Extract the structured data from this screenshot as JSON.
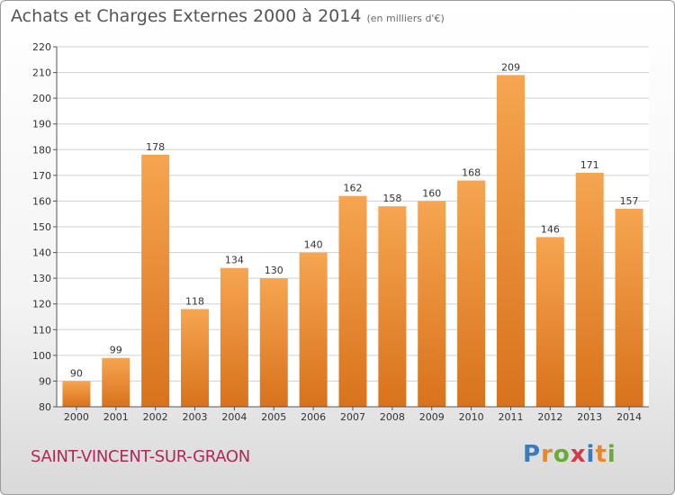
{
  "title": "Achats et Charges Externes 2000 à 2014",
  "unit": "(en milliers d'€)",
  "commune": "SAINT-VINCENT-SUR-GRAON",
  "logo": {
    "letters": [
      "P",
      "r",
      "o",
      "x",
      "i",
      "t",
      "i"
    ],
    "colors": [
      "#3a7bbf",
      "#e8862a",
      "#6aaa3a",
      "#d03a4a",
      "#3a7bbf",
      "#e8862a",
      "#6aaa3a"
    ]
  },
  "colors": {
    "bar_top": "#f6a550",
    "bar_bottom": "#d9721c",
    "grid": "#d0d0d0",
    "axis": "#555555"
  },
  "chart_data": {
    "type": "bar",
    "categories": [
      "2000",
      "2001",
      "2002",
      "2003",
      "2004",
      "2005",
      "2006",
      "2007",
      "2008",
      "2009",
      "2010",
      "2011",
      "2012",
      "2013",
      "2014"
    ],
    "values": [
      90,
      99,
      178,
      118,
      134,
      130,
      140,
      162,
      158,
      160,
      168,
      209,
      146,
      171,
      157
    ],
    "ylim": [
      80,
      220
    ],
    "yticks": [
      80,
      90,
      100,
      110,
      120,
      130,
      140,
      150,
      160,
      170,
      180,
      190,
      200,
      210,
      220
    ],
    "grid": true,
    "data_labels": true
  }
}
